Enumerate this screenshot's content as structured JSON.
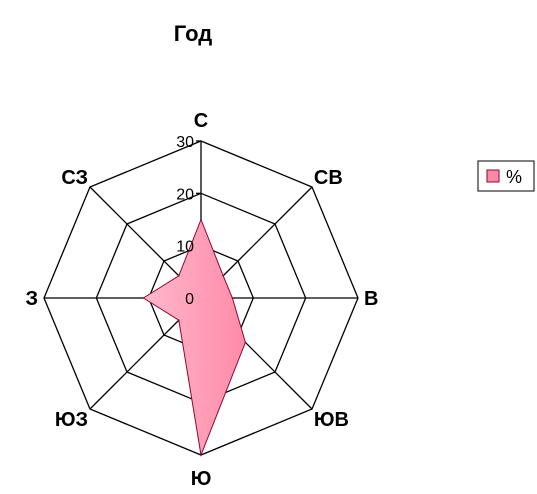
{
  "chart_data": {
    "type": "radar",
    "title": "Год",
    "categories": [
      "С",
      "СВ",
      "В",
      "ЮВ",
      "Ю",
      "ЮЗ",
      "З",
      "СЗ"
    ],
    "series": [
      {
        "name": "%",
        "values": [
          15,
          6,
          6,
          12,
          30,
          6,
          11,
          6
        ]
      }
    ],
    "rlim": [
      0,
      30
    ],
    "r_ticks": [
      0,
      10,
      20,
      30
    ],
    "grid": true,
    "legend": "right",
    "colors": {
      "fill": "#ff8aa8",
      "fill_highlight": "#ffb8cc",
      "stroke": "#8a0a30",
      "grid": "#000000"
    }
  }
}
